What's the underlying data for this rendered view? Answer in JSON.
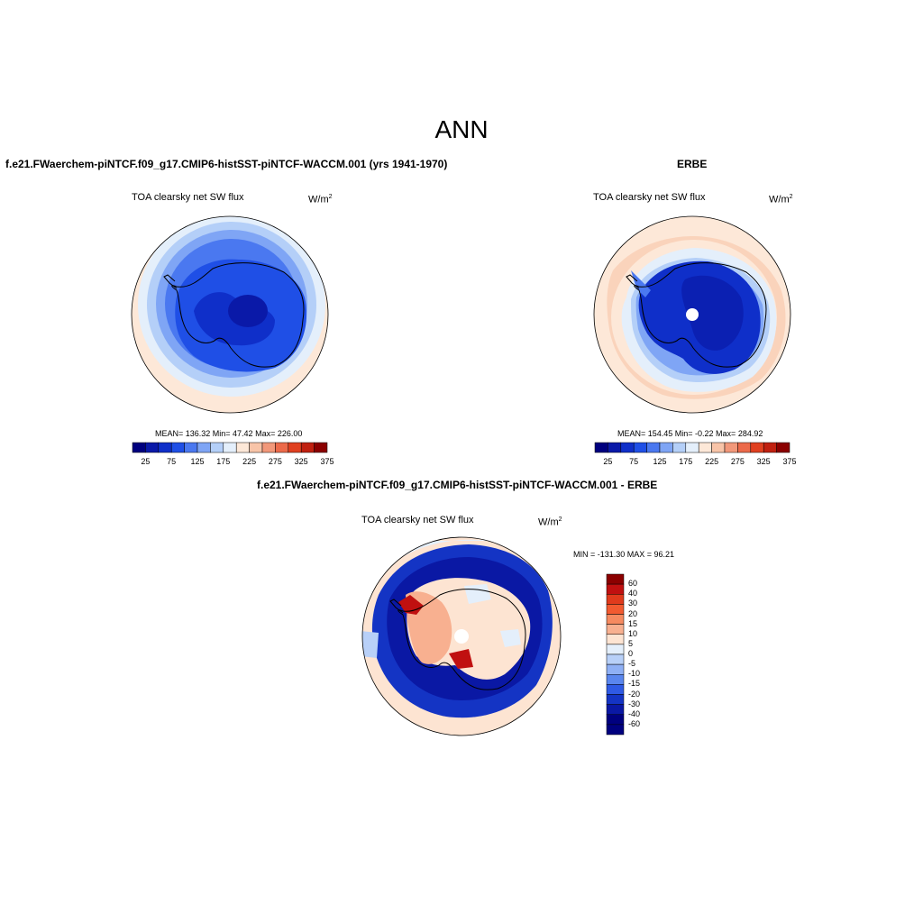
{
  "main_title": "ANN",
  "panels": [
    {
      "title": "f.e21.FWaerchem-piNTCF.f09_g17.CMIP6-histSST-piNTCF-WACCM.001 (yrs 1941-1970)",
      "variable": "TOA clearsky net SW flux",
      "units_base": "W/m",
      "units_exp": "2",
      "stats": "MEAN= 136.32  Min=  47.42  Max= 226.00",
      "colorbar_ticks": [
        "25",
        "75",
        "125",
        "175",
        "225",
        "275",
        "325",
        "375"
      ]
    },
    {
      "title": "ERBE",
      "variable": "TOA clearsky net SW flux",
      "units_base": "W/m",
      "units_exp": "2",
      "stats": "MEAN= 154.45  Min=  -0.22  Max= 284.92",
      "colorbar_ticks": [
        "25",
        "75",
        "125",
        "175",
        "225",
        "275",
        "325",
        "375"
      ]
    },
    {
      "title": "f.e21.FWaerchem-piNTCF.f09_g17.CMIP6-histSST-piNTCF-WACCM.001 - ERBE",
      "variable": "TOA clearsky net SW flux",
      "units_base": "W/m",
      "units_exp": "2",
      "stats": "MIN = -131.30 MAX =  96.21",
      "colorbar_ticks": [
        "60",
        "40",
        "30",
        "20",
        "15",
        "10",
        "5",
        "0",
        "-5",
        "-10",
        "-15",
        "-20",
        "-30",
        "-40",
        "-60"
      ]
    }
  ],
  "colors": {
    "abs_scale": [
      "#00007f",
      "#0a19a8",
      "#0f2fc9",
      "#1f4fe6",
      "#4a78f0",
      "#7fa5f5",
      "#b4cff8",
      "#e4effb",
      "#fde8d8",
      "#f8c4a8",
      "#f2987a",
      "#ec6a4a",
      "#e04020",
      "#c02010",
      "#8b0000"
    ],
    "diff_scale": [
      "#8b0000",
      "#c01010",
      "#e03a1c",
      "#f25a30",
      "#f68a60",
      "#f8b090",
      "#fde4d2",
      "#e4effb",
      "#b8d0f8",
      "#8fb0f5",
      "#5a86ee",
      "#2f5ae4",
      "#1434c4",
      "#0a18a4",
      "#00007f"
    ],
    "land_outline": "#000000"
  }
}
